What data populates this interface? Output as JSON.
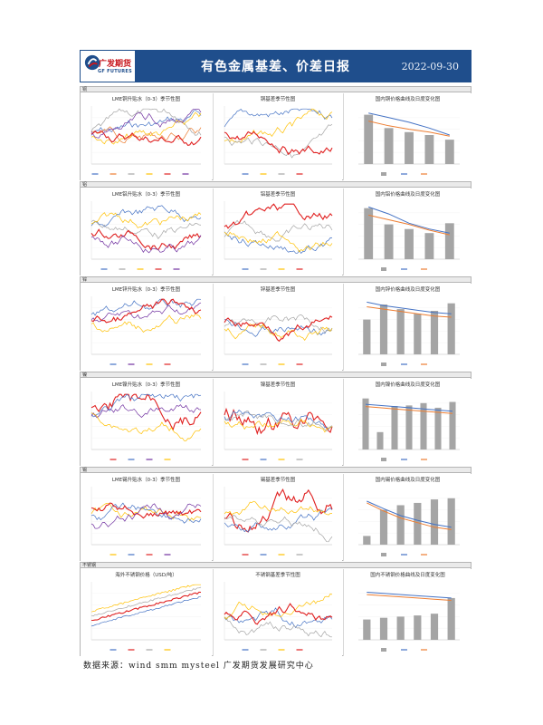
{
  "header": {
    "logo_cn": "广发期货",
    "logo_en": "GF FUTURES",
    "title": "有色金属基差、价差日报",
    "date": "2022-09-30"
  },
  "rows": [
    {
      "label": "铜",
      "panels": [
        {
          "title": "LME铜升贴水（0-3）季节性图",
          "series_colors": [
            "#4472c4",
            "#ed7d31",
            "#a5a5a5",
            "#ffc000",
            "#e02020",
            "#7030a0"
          ]
        },
        {
          "title": "铜基差季节性图",
          "series_colors": [
            "#4472c4",
            "#ffc000",
            "#a5a5a5",
            "#e02020"
          ]
        },
        {
          "title": "国内铜价格曲线及日度变化图",
          "bars": [
            0.85,
            0.62,
            0.55,
            0.5,
            0.42
          ],
          "line1": [
            0.88,
            0.8,
            0.72,
            0.62,
            0.5
          ],
          "line2": [
            0.74,
            0.66,
            0.6,
            0.55,
            0.48
          ]
        }
      ]
    },
    {
      "label": "铝",
      "panels": [
        {
          "title": "LME铝升贴水（0-3）季节性图",
          "series_colors": [
            "#4472c4",
            "#a5a5a5",
            "#ffc000",
            "#e02020",
            "#7030a0"
          ]
        },
        {
          "title": "铝基差季节性图",
          "series_colors": [
            "#4472c4",
            "#a5a5a5",
            "#ffc000",
            "#e02020"
          ]
        },
        {
          "title": "国内铝价格曲线及日度变化图",
          "bars": [
            0.88,
            0.6,
            0.52,
            0.45,
            0.62
          ],
          "line1": [
            0.9,
            0.78,
            0.62,
            0.52,
            0.45
          ],
          "line2": [
            0.76,
            0.68,
            0.6,
            0.5,
            0.42
          ]
        }
      ]
    },
    {
      "label": "锌",
      "panels": [
        {
          "title": "LME锌升贴水（0-3）季节性图",
          "series_colors": [
            "#4472c4",
            "#7030a0",
            "#ffc000",
            "#e02020"
          ]
        },
        {
          "title": "锌基差季节性图",
          "series_colors": [
            "#4472c4",
            "#a5a5a5",
            "#ffc000",
            "#e02020"
          ]
        },
        {
          "title": "国内锌价格曲线及日度变化图",
          "bars": [
            0.6,
            0.86,
            0.78,
            0.7,
            0.75,
            0.88
          ],
          "line1": [
            0.9,
            0.84,
            0.8,
            0.76,
            0.72,
            0.7
          ],
          "line2": [
            0.82,
            0.78,
            0.74,
            0.7,
            0.66,
            0.64
          ]
        }
      ]
    },
    {
      "label": "镍",
      "panels": [
        {
          "title": "LME镍升贴水（0-3）季节性图",
          "series_colors": [
            "#e02020",
            "#4472c4",
            "#7030a0",
            "#ffc000"
          ]
        },
        {
          "title": "镍基差季节性图",
          "series_colors": [
            "#e02020",
            "#4472c4",
            "#ffc000",
            "#a5a5a5"
          ]
        },
        {
          "title": "国内镍价格曲线及日度变化图",
          "bars": [
            0.88,
            0.3,
            0.75,
            0.76,
            0.8,
            0.72,
            0.82
          ],
          "line1": [
            0.78,
            0.76,
            0.74,
            0.72,
            0.7,
            0.68,
            0.66
          ],
          "line2": [
            0.74,
            0.72,
            0.7,
            0.68,
            0.66,
            0.64,
            0.62
          ]
        }
      ]
    },
    {
      "label": "锡",
      "panels": [
        {
          "title": "LME锡升贴水（0-3）季节性图",
          "series_colors": [
            "#ffc000",
            "#4472c4",
            "#e02020",
            "#7030a0"
          ]
        },
        {
          "title": "锡基差季节性图",
          "series_colors": [
            "#e02020",
            "#4472c4",
            "#ffc000",
            "#a5a5a5"
          ]
        },
        {
          "title": "国内锡价格曲线及日度变化图",
          "bars": [
            0.15,
            0.6,
            0.68,
            0.72,
            0.78,
            0.8
          ],
          "line1": [
            0.75,
            0.62,
            0.5,
            0.42,
            0.35,
            0.3
          ],
          "line2": [
            0.72,
            0.58,
            0.46,
            0.38,
            0.3,
            0.26
          ]
        }
      ]
    },
    {
      "label": "不锈钢",
      "panels": [
        {
          "title": "海外不锈钢价格（USD/吨）",
          "series_colors": [
            "#4472c4",
            "#e02020",
            "#a5a5a5",
            "#ffc000"
          ]
        },
        {
          "title": "不锈钢基差季节性图",
          "series_colors": [
            "#4472c4",
            "#a5a5a5",
            "#ffc000",
            "#e02020"
          ]
        },
        {
          "title": "国内不锈钢价格曲线及日度变化图",
          "bars": [
            0.35,
            0.38,
            0.4,
            0.42,
            0.45,
            0.72
          ],
          "line1": [
            0.82,
            0.8,
            0.78,
            0.76,
            0.74,
            0.72
          ],
          "line2": [
            0.78,
            0.76,
            0.74,
            0.72,
            0.7,
            0.68
          ]
        }
      ]
    }
  ],
  "footer": "数据来源：wind  smm  mysteel  广发期货发展研究中心"
}
